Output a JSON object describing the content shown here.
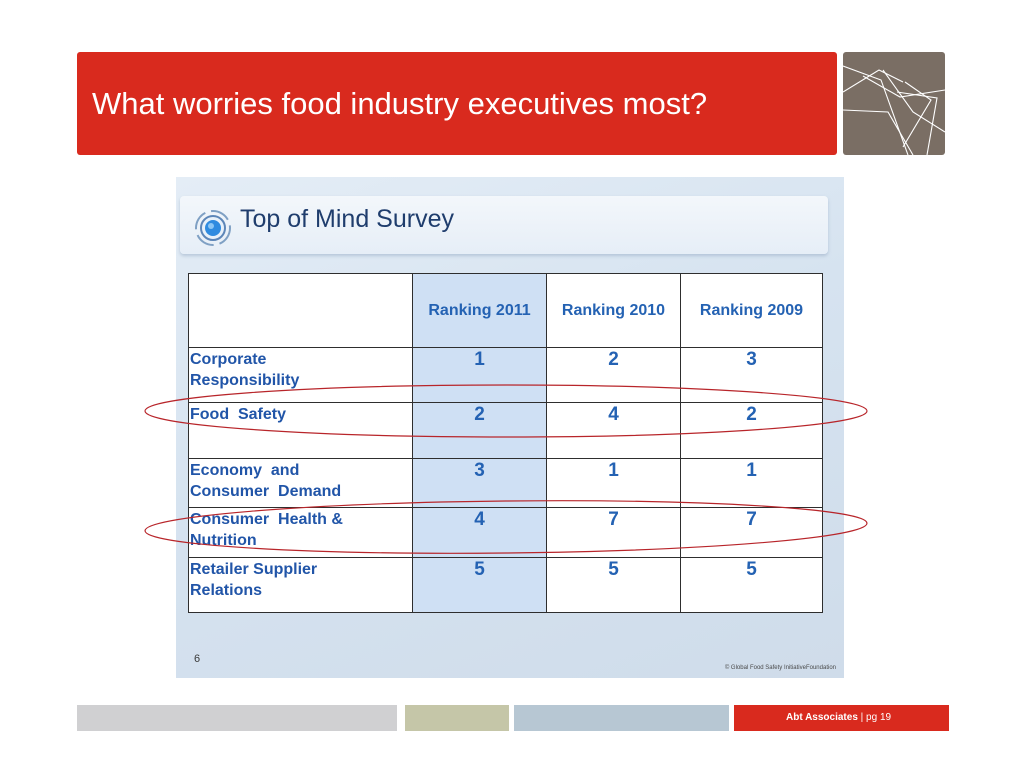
{
  "header": {
    "title": "What worries food industry executives most?"
  },
  "slide": {
    "title": "Top of Mind Survey",
    "page_number": "6",
    "copyright": "© Global Food Safety InitiativeFoundation",
    "table": {
      "headers": [
        "",
        "Ranking 2011",
        "Ranking 2010",
        "Ranking 2009"
      ],
      "rows": [
        {
          "label_lines": [
            "Corporate",
            "Responsibility"
          ],
          "r2011": "1",
          "r2010": "2",
          "r2009": "3",
          "highlighted": false
        },
        {
          "label_lines": [
            "Food  Safety",
            ""
          ],
          "r2011": "2",
          "r2010": "4",
          "r2009": "2",
          "highlighted": true
        },
        {
          "label_lines": [
            "Economy  and",
            "Consumer  Demand"
          ],
          "r2011": "3",
          "r2010": "1",
          "r2009": "1",
          "highlighted": false
        },
        {
          "label_lines": [
            "Consumer  Health &",
            "Nutrition"
          ],
          "r2011": "4",
          "r2010": "7",
          "r2009": "7",
          "highlighted": true
        },
        {
          "label_lines": [
            "Retailer Supplier",
            "Relations"
          ],
          "r2011": "5",
          "r2010": "5",
          "r2009": "5",
          "highlighted": false
        }
      ]
    }
  },
  "footer": {
    "company": "Abt Associates",
    "separator": "|",
    "page": "pg 19"
  },
  "colors": {
    "title_red": "#d92a1e",
    "logo_taupe": "#7a6e64",
    "text_blue": "#2462b3",
    "oval_red": "#b8252a",
    "highlight_column": "#cfe0f4"
  },
  "icons": [
    "target-icon",
    "logo-lines-icon"
  ]
}
